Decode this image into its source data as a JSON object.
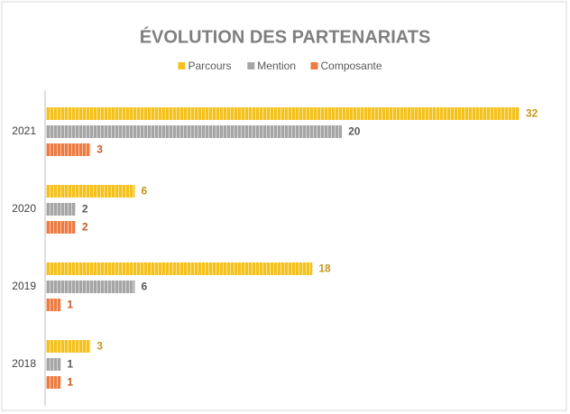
{
  "chart_data": {
    "type": "bar",
    "orientation": "horizontal",
    "title": "ÉVOLUTION DES PARTENARIATS",
    "categories": [
      "2021",
      "2020",
      "2019",
      "2018"
    ],
    "series": [
      {
        "name": "Parcours",
        "color": "#f5c11a",
        "label_color": "#c8961a",
        "values": [
          32,
          6,
          18,
          3
        ]
      },
      {
        "name": "Mention",
        "color": "#a5a5a5",
        "label_color": "#595959",
        "values": [
          20,
          2,
          6,
          1
        ]
      },
      {
        "name": "Composante",
        "color": "#ec7c42",
        "label_color": "#c55a22",
        "values": [
          3,
          2,
          1,
          1
        ]
      }
    ],
    "legend": "top",
    "grid": false
  }
}
